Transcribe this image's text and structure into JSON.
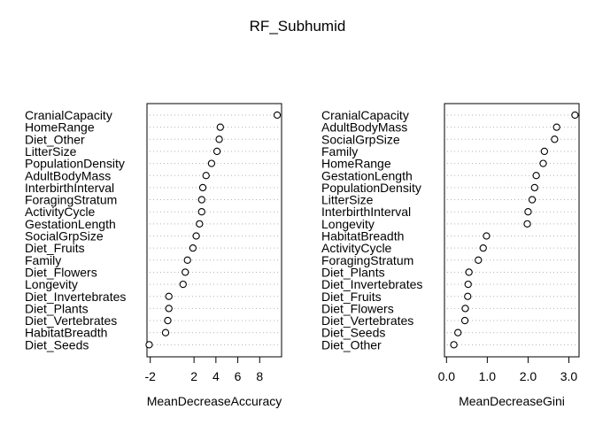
{
  "chart_data": [
    {
      "type": "scatter",
      "title": "RF_Subhumid",
      "xlabel": "MeanDecreaseAccuracy",
      "ylabel": "",
      "xlim": [
        -2.3,
        10.0
      ],
      "xticks": [
        -2,
        2,
        4,
        6,
        8
      ],
      "grid": "dotted horizontal guides",
      "categories": [
        "CranialCapacity",
        "HomeRange",
        "Diet_Other",
        "LitterSize",
        "PopulationDensity",
        "AdultBodyMass",
        "InterbirthInterval",
        "ForagingStratum",
        "ActivityCycle",
        "GestationLength",
        "SocialGrpSize",
        "Diet_Fruits",
        "Family",
        "Diet_Flowers",
        "Longevity",
        "Diet_Invertebrates",
        "Diet_Plants",
        "Diet_Vertebrates",
        "HabitatBreadth",
        "Diet_Seeds"
      ],
      "values": [
        9.6,
        4.4,
        4.3,
        4.1,
        3.6,
        3.1,
        2.8,
        2.7,
        2.7,
        2.5,
        2.2,
        1.9,
        1.4,
        1.2,
        1.0,
        -0.3,
        -0.3,
        -0.4,
        -0.6,
        -2.1
      ]
    },
    {
      "type": "scatter",
      "title": "",
      "xlabel": "MeanDecreaseGini",
      "ylabel": "",
      "xlim": [
        -0.05,
        3.25
      ],
      "xticks": [
        0.0,
        1.0,
        2.0,
        3.0
      ],
      "xtick_labels": [
        "0.0",
        "1.0",
        "2.0",
        "3.0"
      ],
      "grid": "dotted horizontal guides",
      "categories": [
        "CranialCapacity",
        "AdultBodyMass",
        "SocialGrpSize",
        "Family",
        "HomeRange",
        "GestationLength",
        "PopulationDensity",
        "LitterSize",
        "InterbirthInterval",
        "Longevity",
        "HabitatBreadth",
        "ActivityCycle",
        "ForagingStratum",
        "Diet_Plants",
        "Diet_Invertebrates",
        "Diet_Fruits",
        "Diet_Flowers",
        "Diet_Vertebrates",
        "Diet_Seeds",
        "Diet_Other"
      ],
      "values": [
        3.15,
        2.7,
        2.65,
        2.4,
        2.37,
        2.2,
        2.16,
        2.1,
        2.0,
        1.98,
        0.98,
        0.9,
        0.78,
        0.55,
        0.53,
        0.52,
        0.46,
        0.45,
        0.28,
        0.18
      ]
    }
  ]
}
